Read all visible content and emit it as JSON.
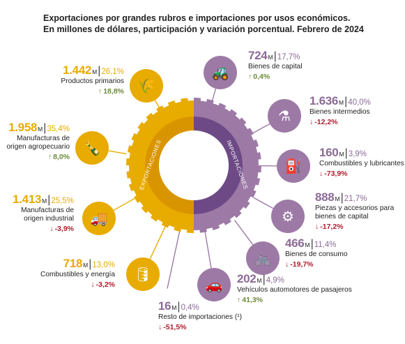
{
  "title": [
    "Exportaciones por grandes rubros e importaciones por usos económicos.",
    "En millones de dólares, participación y variación porcentual. Febrero de 2024"
  ],
  "colors": {
    "exports": "#e8ab00",
    "imports": "#9d7aa6",
    "exports_inner": "#d99500",
    "imports_inner": "#6d4a86",
    "up": "#6e8a3a",
    "down": "#b01c2e"
  },
  "ring_labels": {
    "exports": "EXPORTACIONES",
    "imports": "IMPORTACIONES"
  },
  "chart_data": {
    "type": "pie",
    "unit": "M",
    "series": [
      {
        "name": "EXPORTACIONES",
        "items": [
          {
            "id": "productos-primarios",
            "value": "1.442",
            "unit": "M",
            "share": "26,1%",
            "name_lines": [
              "Productos primarios"
            ],
            "change": "18,8%",
            "direction": "up",
            "icon": "wheat-icon"
          },
          {
            "id": "manufacturas-agropecuario",
            "value": "1.958",
            "unit": "M",
            "share": "35,4%",
            "name_lines": [
              "Manufacturas de",
              "origen agropecuario"
            ],
            "change": "8,0%",
            "direction": "up",
            "icon": "bottle-icon"
          },
          {
            "id": "manufacturas-industrial",
            "value": "1.413",
            "unit": "M",
            "share": "25,5%",
            "name_lines": [
              "Manufacturas de",
              "origen industrial"
            ],
            "change": "-3,9%",
            "direction": "down",
            "icon": "truck-icon"
          },
          {
            "id": "combustibles-energia",
            "value": "718",
            "unit": "M",
            "share": "13,0%",
            "name_lines": [
              "Combustibles y energía"
            ],
            "change": "-3,2%",
            "direction": "down",
            "icon": "oil-barrel-icon"
          }
        ]
      },
      {
        "name": "IMPORTACIONES",
        "items": [
          {
            "id": "bienes-capital",
            "value": "724",
            "unit": "M",
            "share": "17,7%",
            "name_lines": [
              "Bienes de capital"
            ],
            "change": "0,4%",
            "direction": "up",
            "icon": "tractor-icon"
          },
          {
            "id": "bienes-intermedios",
            "value": "1.636",
            "unit": "M",
            "share": "40,0%",
            "name_lines": [
              "Bienes intermedios"
            ],
            "change": "-12,2%",
            "direction": "down",
            "icon": "flask-icon"
          },
          {
            "id": "combustibles-lubricantes",
            "value": "160",
            "unit": "M",
            "share": "3,9%",
            "name_lines": [
              "Combustibles y lubricantes"
            ],
            "change": "-73,9%",
            "direction": "down",
            "icon": "jerrycan-icon"
          },
          {
            "id": "piezas-accesorios",
            "value": "888",
            "unit": "M",
            "share": "21,7%",
            "name_lines": [
              "Piezas y accesorios para",
              "bienes de capital"
            ],
            "change": "-17,2%",
            "direction": "down",
            "icon": "bolt-part-icon"
          },
          {
            "id": "bienes-consumo",
            "value": "466",
            "unit": "M",
            "share": "11,4%",
            "name_lines": [
              "Bienes de consumo"
            ],
            "change": "-19,7%",
            "direction": "down",
            "icon": "bicycle-icon"
          },
          {
            "id": "vehiculos-automotores",
            "value": "202",
            "unit": "M",
            "share": "4,9%",
            "name_lines": [
              "Vehículos automotores de pasajeros"
            ],
            "change": "41,3%",
            "direction": "up",
            "icon": "car-icon"
          },
          {
            "id": "resto-importaciones",
            "value": "16",
            "unit": "M",
            "share": "0,4%",
            "name_lines": [
              "Resto de importaciones (¹)"
            ],
            "change": "-51,5%",
            "direction": "down",
            "icon": ""
          }
        ]
      }
    ]
  }
}
